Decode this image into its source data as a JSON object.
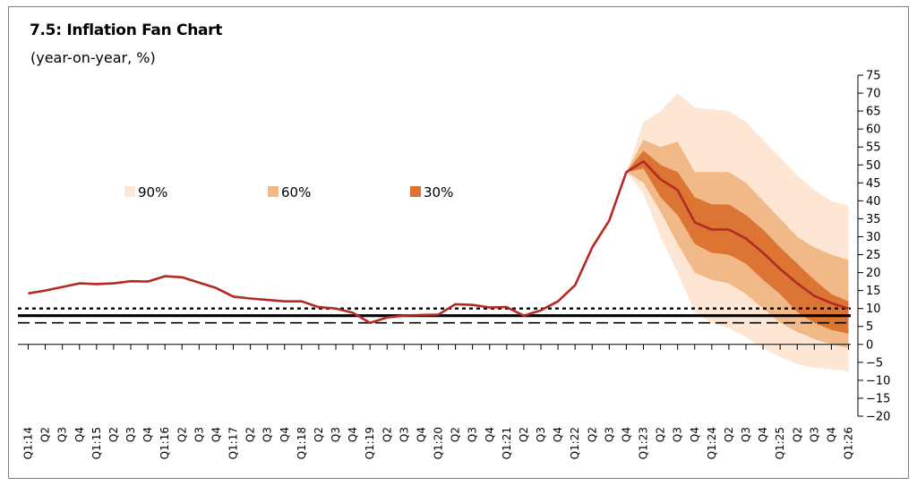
{
  "chart_data": {
    "type": "area",
    "title": "7.5: Inflation Fan Chart",
    "subtitle": "(year-on-year, %)",
    "ylim": [
      -20,
      75
    ],
    "yticks": [
      75,
      70,
      65,
      60,
      55,
      50,
      45,
      40,
      35,
      30,
      25,
      20,
      15,
      10,
      5,
      0,
      -5,
      -10,
      -15,
      -20
    ],
    "ytick_labels": [
      "75",
      "70",
      "65",
      "60",
      "55",
      "50",
      "45",
      "40",
      "35",
      "30",
      "25",
      "20",
      "15",
      "10",
      "5",
      "0",
      "−5",
      "−10",
      "−15",
      "−20"
    ],
    "x_labels": [
      "Q1:14",
      "Q2",
      "Q3",
      "Q4",
      "Q1:15",
      "Q2",
      "Q3",
      "Q4",
      "Q1:16",
      "Q2",
      "Q3",
      "Q4",
      "Q1:17",
      "Q2",
      "Q3",
      "Q4",
      "Q1:18",
      "Q2",
      "Q3",
      "Q4",
      "Q1:19",
      "Q2",
      "Q3",
      "Q4",
      "Q1:20",
      "Q2",
      "Q3",
      "Q4",
      "Q1:21",
      "Q2",
      "Q3",
      "Q4",
      "Q1:22",
      "Q2",
      "Q3",
      "Q4",
      "Q1:23",
      "Q2",
      "Q3",
      "Q4",
      "Q1:24",
      "Q2",
      "Q3",
      "Q4",
      "Q1:25",
      "Q2",
      "Q3",
      "Q4",
      "Q1:26"
    ],
    "legend": [
      {
        "name": "90%",
        "color": "#fde6d3"
      },
      {
        "name": "60%",
        "color": "#f0b987"
      },
      {
        "name": "30%",
        "color": "#dc7433"
      }
    ],
    "legend_placement": "top-left",
    "inflation_line": {
      "color": "#b22a22",
      "values": [
        14.2,
        15.0,
        16.0,
        17.0,
        16.8,
        17.0,
        17.6,
        17.5,
        19.0,
        18.7,
        17.2,
        15.7,
        13.3,
        12.8,
        12.4,
        12.0,
        12.0,
        10.4,
        10.0,
        8.8,
        6.0,
        7.5,
        8.0,
        8.2,
        8.3,
        11.2,
        11.0,
        10.3,
        10.4,
        8.0,
        9.5,
        12.0,
        16.5,
        27.0,
        34.5,
        48.0,
        51.0,
        46.0,
        43.0,
        34.0,
        32.0,
        32.0,
        29.5,
        25.5,
        21.0,
        17.0,
        13.5,
        11.5,
        10.0
      ]
    },
    "fan_start_index": 35,
    "fan_bands": {
      "90": {
        "upper": [
          48,
          62,
          65,
          70,
          66,
          65.5,
          65,
          62,
          57,
          52,
          47,
          43,
          40,
          38.5
        ],
        "lower": [
          48,
          42,
          30,
          20,
          9,
          6,
          4.5,
          2,
          -1,
          -3.5,
          -5.5,
          -6.5,
          -7,
          -7.5
        ]
      },
      "60": {
        "upper": [
          48,
          57,
          55,
          56.5,
          48,
          48,
          48,
          45,
          40,
          35,
          30,
          27,
          25,
          23.5
        ],
        "lower": [
          48,
          45,
          37,
          28,
          20,
          18,
          17,
          14,
          10,
          6,
          3.5,
          1.5,
          0,
          -1
        ]
      },
      "30": {
        "upper": [
          48,
          54,
          50,
          48,
          41,
          39,
          39,
          36,
          32,
          27,
          22.5,
          18,
          14,
          12
        ],
        "lower": [
          48,
          49,
          41,
          36,
          28,
          25.5,
          25,
          22.5,
          18,
          14,
          9,
          6,
          4,
          3
        ]
      }
    },
    "reference_lines": [
      {
        "style": "solid",
        "value": 8
      },
      {
        "style": "dotted",
        "value": 10
      },
      {
        "style": "dashed",
        "value": 6
      }
    ]
  }
}
